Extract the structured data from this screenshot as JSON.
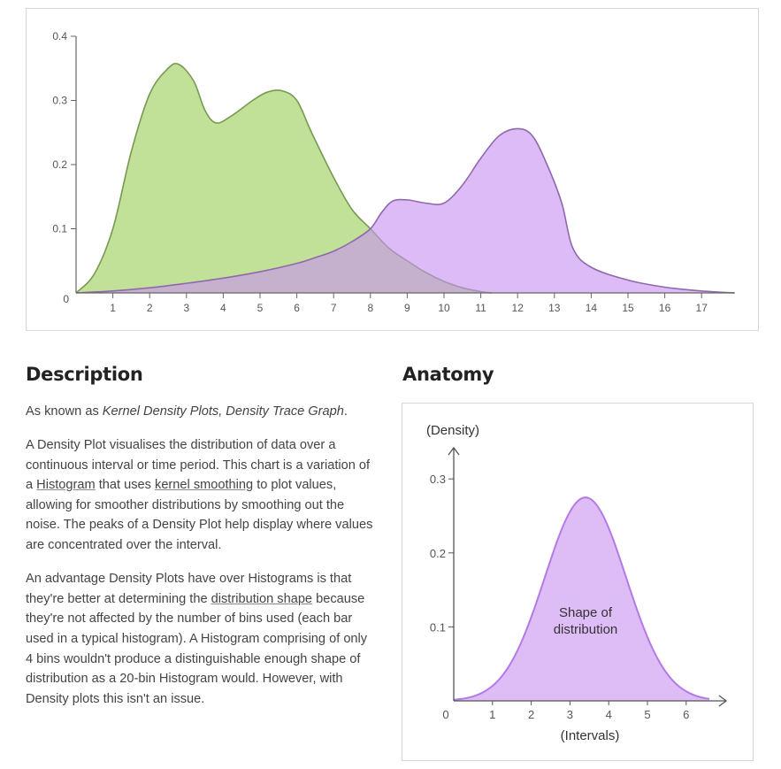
{
  "chart_data": [
    {
      "type": "area",
      "title": "",
      "xlabel": "",
      "ylabel": "",
      "xlim": [
        0,
        17.9
      ],
      "ylim": [
        0,
        0.4
      ],
      "x_ticks": [
        "1",
        "2",
        "3",
        "4",
        "5",
        "6",
        "7",
        "8",
        "9",
        "10",
        "11",
        "12",
        "13",
        "14",
        "15",
        "16",
        "17"
      ],
      "y_ticks": [
        "0.4",
        "0.3",
        "0.2",
        "0.1",
        "0"
      ],
      "grid": false,
      "series": [
        {
          "color": "#a7d56f",
          "points": [
            [
              0,
              0
            ],
            [
              0.5,
              0.03
            ],
            [
              1,
              0.1
            ],
            [
              1.5,
              0.22
            ],
            [
              2,
              0.31
            ],
            [
              2.5,
              0.35
            ],
            [
              2.8,
              0.356
            ],
            [
              3.2,
              0.33
            ],
            [
              3.5,
              0.285
            ],
            [
              3.8,
              0.265
            ],
            [
              4.2,
              0.275
            ],
            [
              4.8,
              0.3
            ],
            [
              5.2,
              0.313
            ],
            [
              5.6,
              0.315
            ],
            [
              6,
              0.3
            ],
            [
              6.4,
              0.25
            ],
            [
              7,
              0.18
            ],
            [
              7.5,
              0.13
            ],
            [
              8,
              0.1
            ],
            [
              8.5,
              0.07
            ],
            [
              9,
              0.05
            ],
            [
              9.5,
              0.032
            ],
            [
              10,
              0.018
            ],
            [
              10.5,
              0.008
            ],
            [
              11,
              0.002
            ],
            [
              11.3,
              0
            ]
          ]
        },
        {
          "color": "#c891f0",
          "points": [
            [
              0,
              0
            ],
            [
              1,
              0.003
            ],
            [
              2,
              0.008
            ],
            [
              3,
              0.015
            ],
            [
              4,
              0.023
            ],
            [
              5,
              0.033
            ],
            [
              6,
              0.046
            ],
            [
              6.5,
              0.055
            ],
            [
              7,
              0.065
            ],
            [
              7.5,
              0.08
            ],
            [
              8,
              0.1
            ],
            [
              8.3,
              0.125
            ],
            [
              8.6,
              0.143
            ],
            [
              9,
              0.145
            ],
            [
              9.5,
              0.14
            ],
            [
              10,
              0.14
            ],
            [
              10.5,
              0.168
            ],
            [
              11,
              0.21
            ],
            [
              11.5,
              0.245
            ],
            [
              12,
              0.256
            ],
            [
              12.4,
              0.245
            ],
            [
              12.8,
              0.2
            ],
            [
              13.2,
              0.14
            ],
            [
              13.5,
              0.07
            ],
            [
              14,
              0.04
            ],
            [
              15,
              0.02
            ],
            [
              16,
              0.009
            ],
            [
              17,
              0.003
            ],
            [
              17.9,
              0
            ]
          ]
        }
      ]
    },
    {
      "type": "area",
      "title": "",
      "xlabel": "(Intervals)",
      "ylabel": "(Density)",
      "xlim": [
        0,
        7
      ],
      "ylim": [
        0,
        0.34
      ],
      "x_ticks": [
        "0",
        "1",
        "2",
        "3",
        "4",
        "5",
        "6"
      ],
      "y_ticks": [
        "0.3",
        "0.2",
        "0.1"
      ],
      "annotation": "Shape of distribution",
      "series": [
        {
          "color": "#c891f0",
          "mu": 3.4,
          "sigma": 1.05,
          "peak": 0.275,
          "x_range": [
            0,
            6.6
          ]
        }
      ]
    }
  ],
  "description": {
    "heading": "Description",
    "intro_prefix": "As known as ",
    "intro_em": "Kernel Density Plots, Density Trace Graph",
    "intro_suffix": ".",
    "p2_a": "A Density Plot visualises the distribution of data over a continuous interval or time period. This chart is a variation of a ",
    "p2_link1": "Histogram",
    "p2_b": " that uses ",
    "p2_link2": "kernel smoothing",
    "p2_c": " to plot values, allowing for smoother distributions by smoothing out the noise. The peaks of a Density Plot help display where values are concentrated over the interval.",
    "p3_a": "An advantage Density Plots have over Histograms is that they're better at determining the ",
    "p3_link": "distribution shape",
    "p3_b": " because they're not affected by the number of bins used (each bar used in a typical histogram). A Histogram comprising of only 4 bins wouldn't produce a distinguishable enough shape of distribution as a 20-bin Histogram would. However, with Density plots this isn't an issue."
  },
  "anatomy": {
    "heading": "Anatomy",
    "annotation_line1": "Shape of",
    "annotation_line2": "distribution"
  }
}
